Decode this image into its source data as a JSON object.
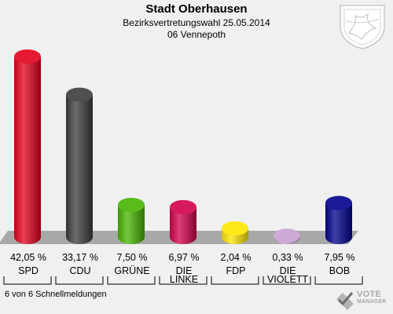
{
  "header": {
    "title": "Stadt Oberhausen",
    "subtitle": "Bezirksvertretungswahl 25.05.2014",
    "district": "06 Vennepoth"
  },
  "footer": {
    "note": "6 von 6 Schnellmeldungen",
    "logo_line1": "VOTE",
    "logo_line2": "MANAGER"
  },
  "chart_data": {
    "type": "bar",
    "categories": [
      "SPD",
      "CDU",
      "GRÜNE",
      "DIE LINKE",
      "FDP",
      "DIE VIOLETT",
      "BOB"
    ],
    "category_lines": [
      [
        "SPD"
      ],
      [
        "CDU"
      ],
      [
        "GRÜNE"
      ],
      [
        "DIE",
        "LINKE"
      ],
      [
        "FDP"
      ],
      [
        "DIE",
        "VIOLETT"
      ],
      [
        "BOB"
      ]
    ],
    "values": [
      42.05,
      33.17,
      7.5,
      6.97,
      2.04,
      0.33,
      7.95
    ],
    "value_labels": [
      "42,05 %",
      "33,17 %",
      "7,50 %",
      "6,97 %",
      "2,04 %",
      "0,33 %",
      "7,95 %"
    ],
    "colors": [
      "#e3001b",
      "#3c3c3c",
      "#46b400",
      "#d2004b",
      "#ffe600",
      "#c8a0d2",
      "#00008c"
    ],
    "ylim": [
      0,
      42.05
    ],
    "style": "3d-cylinder"
  }
}
